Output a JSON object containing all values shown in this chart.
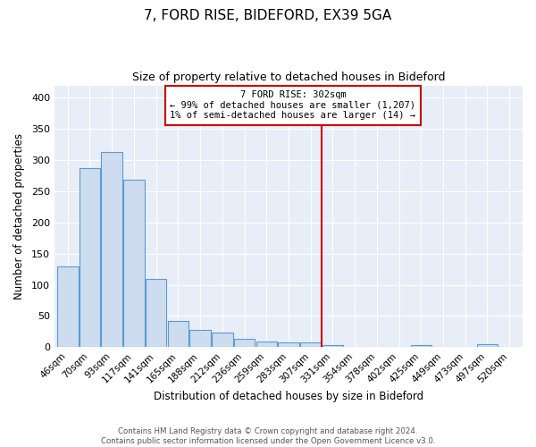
{
  "title": "7, FORD RISE, BIDEFORD, EX39 5GA",
  "subtitle": "Size of property relative to detached houses in Bideford",
  "xlabel": "Distribution of detached houses by size in Bideford",
  "ylabel": "Number of detached properties",
  "footer_line1": "Contains HM Land Registry data © Crown copyright and database right 2024.",
  "footer_line2": "Contains public sector information licensed under the Open Government Licence v3.0.",
  "bar_labels": [
    "46sqm",
    "70sqm",
    "93sqm",
    "117sqm",
    "141sqm",
    "165sqm",
    "188sqm",
    "212sqm",
    "236sqm",
    "259sqm",
    "283sqm",
    "307sqm",
    "331sqm",
    "354sqm",
    "378sqm",
    "402sqm",
    "425sqm",
    "449sqm",
    "473sqm",
    "497sqm",
    "520sqm"
  ],
  "bar_heights": [
    130,
    287,
    313,
    269,
    109,
    42,
    28,
    24,
    13,
    9,
    8,
    8,
    4,
    0,
    0,
    0,
    4,
    0,
    0,
    5,
    0
  ],
  "bar_color": "#cddcee",
  "bar_edge_color": "#5b9bd5",
  "vline_x": 11.5,
  "vline_color": "#cc0000",
  "annotation_title": "7 FORD RISE: 302sqm",
  "annotation_line1": "← 99% of detached houses are smaller (1,207)",
  "annotation_line2": "1% of semi-detached houses are larger (14) →",
  "annotation_box_color": "#ffffff",
  "annotation_box_edge": "#cc0000",
  "ylim": [
    0,
    420
  ],
  "yticks": [
    0,
    50,
    100,
    150,
    200,
    250,
    300,
    350,
    400
  ],
  "plot_bg_color": "#e8eef7",
  "background_color": "#ffffff",
  "grid_color": "#ffffff"
}
